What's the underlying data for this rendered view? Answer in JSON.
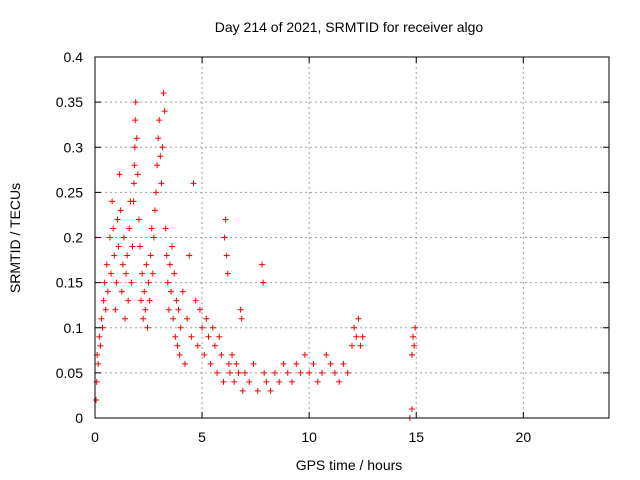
{
  "chart_data": {
    "type": "scatter",
    "title": "Day 214 of 2021, SRMTID for receiver algo",
    "xlabel": "GPS time / hours",
    "ylabel": "SRMTID / TECUs",
    "xlim": [
      0,
      24
    ],
    "ylim": [
      0,
      0.4
    ],
    "xticks": [
      0,
      5,
      10,
      15,
      20
    ],
    "xtick_labels": [
      "0",
      "5",
      "10",
      "15",
      "20"
    ],
    "yticks": [
      0,
      0.05,
      0.1,
      0.15,
      0.2,
      0.25,
      0.3,
      0.35,
      0.4
    ],
    "ytick_labels": [
      "0",
      "0.05",
      "0.1",
      "0.15",
      "0.2",
      "0.25",
      "0.3",
      "0.35",
      "0.4"
    ],
    "grid": true,
    "marker": "+",
    "series_color": "#ff0000",
    "series": [
      {
        "name": "SRMTID",
        "points": [
          [
            0.05,
            0.02
          ],
          [
            0.08,
            0.04
          ],
          [
            0.1,
            0.07
          ],
          [
            0.15,
            0.06
          ],
          [
            0.2,
            0.09
          ],
          [
            0.25,
            0.08
          ],
          [
            0.3,
            0.11
          ],
          [
            0.35,
            0.1
          ],
          [
            0.4,
            0.13
          ],
          [
            0.45,
            0.15
          ],
          [
            0.5,
            0.12
          ],
          [
            0.55,
            0.17
          ],
          [
            0.6,
            0.14
          ],
          [
            0.7,
            0.2
          ],
          [
            0.75,
            0.16
          ],
          [
            0.8,
            0.24
          ],
          [
            0.85,
            0.21
          ],
          [
            0.9,
            0.18
          ],
          [
            0.95,
            0.12
          ],
          [
            1.0,
            0.15
          ],
          [
            1.05,
            0.22
          ],
          [
            1.1,
            0.19
          ],
          [
            1.15,
            0.27
          ],
          [
            1.2,
            0.23
          ],
          [
            1.25,
            0.14
          ],
          [
            1.3,
            0.17
          ],
          [
            1.35,
            0.2
          ],
          [
            1.4,
            0.11
          ],
          [
            1.45,
            0.16
          ],
          [
            1.5,
            0.18
          ],
          [
            1.55,
            0.13
          ],
          [
            1.6,
            0.21
          ],
          [
            1.65,
            0.24
          ],
          [
            1.7,
            0.15
          ],
          [
            1.75,
            0.19
          ],
          [
            1.8,
            0.24
          ],
          [
            1.82,
            0.26
          ],
          [
            1.84,
            0.28
          ],
          [
            1.86,
            0.3
          ],
          [
            1.88,
            0.33
          ],
          [
            1.9,
            0.35
          ],
          [
            1.95,
            0.31
          ],
          [
            2.0,
            0.27
          ],
          [
            2.05,
            0.22
          ],
          [
            2.1,
            0.19
          ],
          [
            2.15,
            0.13
          ],
          [
            2.2,
            0.16
          ],
          [
            2.25,
            0.11
          ],
          [
            2.3,
            0.14
          ],
          [
            2.35,
            0.12
          ],
          [
            2.4,
            0.17
          ],
          [
            2.45,
            0.1
          ],
          [
            2.5,
            0.15
          ],
          [
            2.55,
            0.13
          ],
          [
            2.6,
            0.18
          ],
          [
            2.65,
            0.21
          ],
          [
            2.7,
            0.16
          ],
          [
            2.75,
            0.2
          ],
          [
            2.8,
            0.23
          ],
          [
            2.85,
            0.25
          ],
          [
            2.9,
            0.28
          ],
          [
            2.95,
            0.31
          ],
          [
            3.0,
            0.33
          ],
          [
            3.05,
            0.29
          ],
          [
            3.1,
            0.26
          ],
          [
            3.15,
            0.3
          ],
          [
            3.2,
            0.36
          ],
          [
            3.25,
            0.34
          ],
          [
            3.3,
            0.21
          ],
          [
            3.35,
            0.18
          ],
          [
            3.4,
            0.15
          ],
          [
            3.45,
            0.12
          ],
          [
            3.5,
            0.17
          ],
          [
            3.55,
            0.14
          ],
          [
            3.6,
            0.19
          ],
          [
            3.65,
            0.11
          ],
          [
            3.7,
            0.16
          ],
          [
            3.75,
            0.09
          ],
          [
            3.8,
            0.13
          ],
          [
            3.85,
            0.08
          ],
          [
            3.9,
            0.12
          ],
          [
            3.95,
            0.07
          ],
          [
            4.0,
            0.1
          ],
          [
            4.1,
            0.14
          ],
          [
            4.2,
            0.06
          ],
          [
            4.3,
            0.11
          ],
          [
            4.4,
            0.18
          ],
          [
            4.5,
            0.09
          ],
          [
            4.6,
            0.26
          ],
          [
            4.7,
            0.13
          ],
          [
            4.8,
            0.08
          ],
          [
            4.9,
            0.12
          ],
          [
            5.0,
            0.1
          ],
          [
            5.1,
            0.07
          ],
          [
            5.2,
            0.11
          ],
          [
            5.3,
            0.09
          ],
          [
            5.4,
            0.06
          ],
          [
            5.5,
            0.1
          ],
          [
            5.6,
            0.08
          ],
          [
            5.7,
            0.05
          ],
          [
            5.8,
            0.09
          ],
          [
            5.9,
            0.07
          ],
          [
            6.0,
            0.04
          ],
          [
            6.05,
            0.2
          ],
          [
            6.1,
            0.22
          ],
          [
            6.15,
            0.18
          ],
          [
            6.2,
            0.16
          ],
          [
            6.25,
            0.06
          ],
          [
            6.3,
            0.05
          ],
          [
            6.4,
            0.07
          ],
          [
            6.5,
            0.04
          ],
          [
            6.6,
            0.06
          ],
          [
            6.7,
            0.05
          ],
          [
            6.8,
            0.12
          ],
          [
            6.85,
            0.11
          ],
          [
            6.9,
            0.03
          ],
          [
            7.0,
            0.05
          ],
          [
            7.2,
            0.04
          ],
          [
            7.4,
            0.06
          ],
          [
            7.6,
            0.03
          ],
          [
            7.8,
            0.17
          ],
          [
            7.85,
            0.15
          ],
          [
            7.9,
            0.05
          ],
          [
            8.0,
            0.04
          ],
          [
            8.2,
            0.03
          ],
          [
            8.4,
            0.05
          ],
          [
            8.6,
            0.04
          ],
          [
            8.8,
            0.06
          ],
          [
            9.0,
            0.05
          ],
          [
            9.2,
            0.04
          ],
          [
            9.4,
            0.06
          ],
          [
            9.6,
            0.05
          ],
          [
            9.8,
            0.07
          ],
          [
            10.0,
            0.05
          ],
          [
            10.2,
            0.06
          ],
          [
            10.4,
            0.04
          ],
          [
            10.6,
            0.05
          ],
          [
            10.8,
            0.07
          ],
          [
            11.0,
            0.06
          ],
          [
            11.2,
            0.05
          ],
          [
            11.4,
            0.04
          ],
          [
            11.6,
            0.06
          ],
          [
            11.8,
            0.05
          ],
          [
            12.0,
            0.08
          ],
          [
            12.1,
            0.1
          ],
          [
            12.2,
            0.09
          ],
          [
            12.3,
            0.11
          ],
          [
            12.4,
            0.08
          ],
          [
            12.5,
            0.09
          ],
          [
            14.7,
            0.0
          ],
          [
            14.8,
            0.07
          ],
          [
            14.85,
            0.09
          ],
          [
            14.9,
            0.08
          ],
          [
            14.95,
            0.1
          ],
          [
            14.8,
            0.01
          ]
        ]
      }
    ]
  }
}
